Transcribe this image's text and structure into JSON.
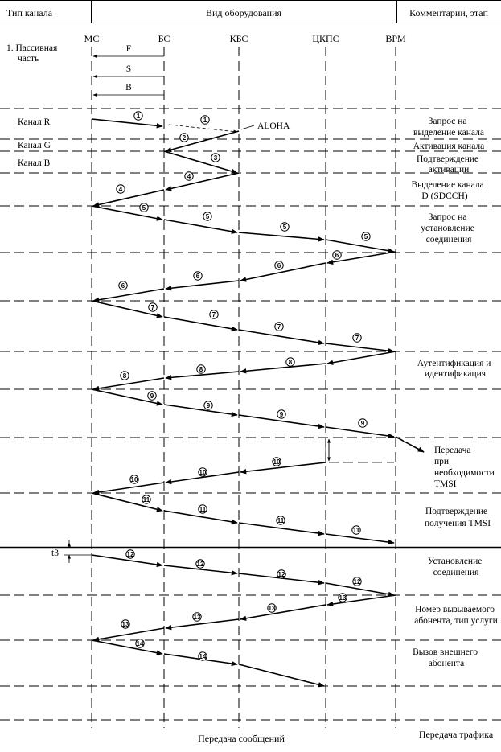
{
  "header": {
    "col_channel_type": "Тип канала",
    "col_equipment": "Вид оборудования",
    "col_comments": "Комментарии, этап"
  },
  "entities": [
    "МС",
    "БС",
    "КБС",
    "ЦКПС",
    "ВРМ"
  ],
  "passive": {
    "title_line1": "1. Пассивная",
    "title_line2": "часть",
    "channels": [
      "F",
      "S",
      "B"
    ]
  },
  "channel_labels": [
    "Канал R",
    "Канал G",
    "Канал B"
  ],
  "aloha_label": "ALOHA",
  "t3_label": "t3",
  "comments": [
    [
      "Запрос на",
      "выделение канала"
    ],
    [
      "Активация канала"
    ],
    [
      "Подтверждение",
      "активации"
    ],
    [
      "Выделение канала",
      "D (SDCCH)"
    ],
    [
      "Запрос на",
      "установление",
      "соединения"
    ],
    [
      "Аутентификация и",
      "идентификация"
    ],
    [
      "Передача",
      "при",
      "необходимости",
      "TMSI"
    ],
    [
      "Подтверждение",
      "получения TMSI"
    ],
    [
      "Установление",
      "соединения"
    ],
    [
      "Номер вызываемого",
      "абонента, тип услуги"
    ],
    [
      "Вызов внешнего",
      "абонента"
    ]
  ],
  "message_numbers": [
    "1",
    "2",
    "3",
    "4",
    "5",
    "6",
    "7",
    "8",
    "9",
    "10",
    "11",
    "12",
    "13",
    "14"
  ],
  "footer": {
    "left": "Передача сообщений",
    "right": "Передача трафика"
  }
}
